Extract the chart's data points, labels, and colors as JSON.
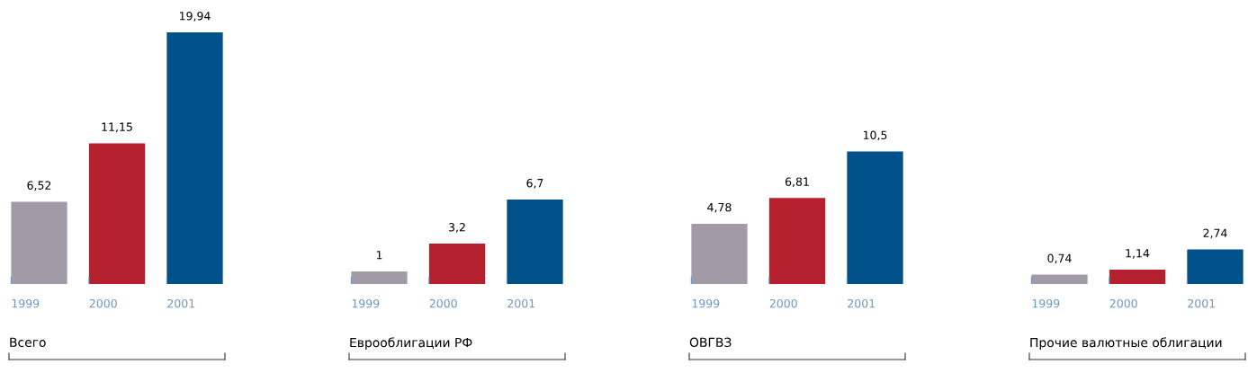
{
  "chart_data": [
    {
      "type": "bar",
      "xlabel": "Всего",
      "categories": [
        "1999",
        "2000",
        "2001"
      ],
      "values": [
        6.52,
        11.15,
        19.94
      ],
      "value_labels": [
        "6,52",
        "11,15",
        "19,94"
      ],
      "colors": [
        "#a09ba6",
        "#b5202e",
        "#00508a"
      ],
      "tick_labels": "x"
    },
    {
      "type": "bar",
      "xlabel": "Еврооблигации РФ",
      "categories": [
        "1999",
        "2000",
        "2001"
      ],
      "values": [
        1,
        3.2,
        6.7
      ],
      "value_labels": [
        "1",
        "3,2",
        "6,7"
      ],
      "colors": [
        "#a09ba6",
        "#b5202e",
        "#00508a"
      ],
      "tick_labels": "x"
    },
    {
      "type": "bar",
      "xlabel": "ОВГВЗ",
      "categories": [
        "1999",
        "2000",
        "2001"
      ],
      "values": [
        4.78,
        6.81,
        10.5
      ],
      "value_labels": [
        "4,78",
        "6,81",
        "10,5"
      ],
      "colors": [
        "#a09ba6",
        "#b5202e",
        "#00508a"
      ],
      "tick_labels": "x"
    },
    {
      "type": "bar",
      "xlabel": "Прочие валютные облигации",
      "categories": [
        "1999",
        "2000",
        "2001"
      ],
      "values": [
        0.74,
        1.14,
        2.74
      ],
      "value_labels": [
        "0,74",
        "1,14",
        "2,74"
      ],
      "colors": [
        "#a09ba6",
        "#b5202e",
        "#00508a"
      ],
      "tick_labels": "x"
    }
  ]
}
